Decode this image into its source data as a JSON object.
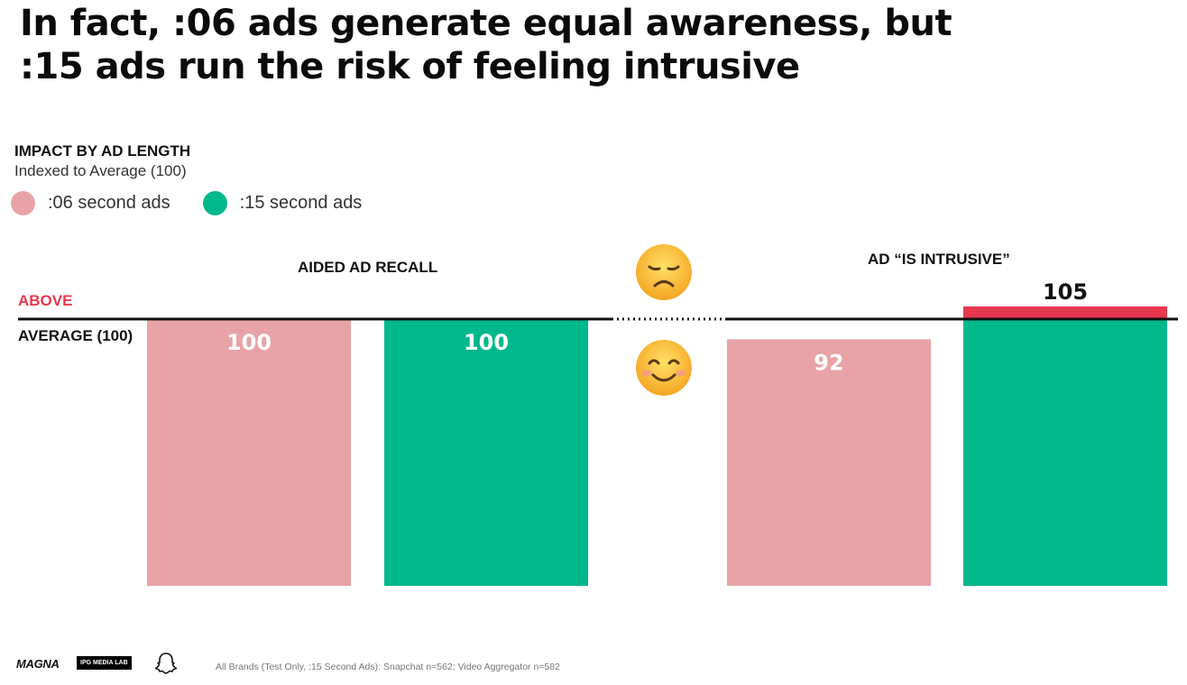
{
  "headline": {
    "line1": "In fact, :06 ads generate equal awareness, but",
    "line2": ":15 ads run the risk of feeling intrusive"
  },
  "subhead": {
    "title": "IMPACT BY AD LENGTH",
    "subtitle": "Indexed to Average (100)"
  },
  "legend": [
    {
      "label": ":06 second ads",
      "color": "#e8a3a6"
    },
    {
      "label": ":15 second ads",
      "color": "#00b88c"
    }
  ],
  "axis_labels": {
    "above": "ABOVE",
    "average": "AVERAGE (100)"
  },
  "colors": {
    "series_06": "#e8a3a6",
    "series_15": "#00b88c",
    "above_average": "#e8384f",
    "above_label": "#e8384f",
    "baseline": "#111111"
  },
  "icons": {
    "negative": "disappointed-face-icon",
    "positive": "smiling-face-icon"
  },
  "chart_data": {
    "type": "bar",
    "baseline": 100,
    "groups": [
      {
        "title": "AIDED AD RECALL",
        "values": [
          {
            "series": ":06 second ads",
            "value": 100,
            "label": "100"
          },
          {
            "series": ":15 second ads",
            "value": 100,
            "label": "100"
          }
        ]
      },
      {
        "title": "AD “IS INTRUSIVE”",
        "values": [
          {
            "series": ":06 second ads",
            "value": 92,
            "label": "92"
          },
          {
            "series": ":15 second ads",
            "value": 105,
            "label": "105"
          }
        ]
      }
    ]
  },
  "footer": {
    "logo_magna": "MAGNA",
    "logo_ipg": "IPG MEDIA LAB",
    "source": "All Brands (Test Only, :15 Second Ads): Snapchat n=562; Video Aggregator n=582"
  }
}
